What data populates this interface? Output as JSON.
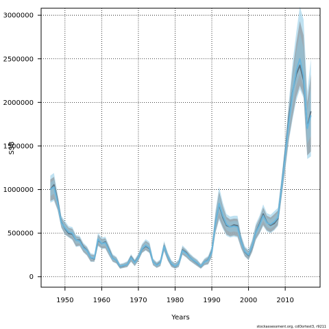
{
  "chart_data": {
    "type": "line",
    "title": "",
    "xlabel": "Years",
    "ylabel": "SSB",
    "xlim": [
      1943.5,
      2019.5
    ],
    "ylim": [
      -120000,
      3080000
    ],
    "x_ticks": [
      1950,
      1960,
      1970,
      1980,
      1990,
      2000,
      2010
    ],
    "y_ticks": [
      0,
      500000,
      1000000,
      1500000,
      2000000,
      2500000,
      3000000
    ],
    "grid": true,
    "legend": "none",
    "footnote": "stockassessment.org, cdOortest3, r9211",
    "colors": {
      "blue_line": "#6bb6dc",
      "blue_band": "#8fc6df",
      "blue_band_hi": "#a9d7ec",
      "gray_line": "#5e7585",
      "gray_band": "#8f979c"
    },
    "series": [
      {
        "x": [
          1946,
          1947,
          1948,
          1949,
          1950,
          1951,
          1952,
          1953,
          1954,
          1955,
          1956,
          1957,
          1958,
          1959,
          1960,
          1961,
          1962,
          1963,
          1964,
          1965,
          1966,
          1967,
          1968,
          1969,
          1970,
          1971,
          1972,
          1973,
          1974,
          1975,
          1976,
          1977,
          1978,
          1979,
          1980,
          1981,
          1982,
          1983,
          1984,
          1985,
          1986,
          1987,
          1988,
          1989,
          1990,
          1991,
          1992,
          1993,
          1994,
          1995,
          1996,
          1997,
          1998,
          1999,
          2000,
          2001,
          2002,
          2003,
          2004,
          2005,
          2006,
          2007,
          2008,
          2009,
          2010,
          2011,
          2012,
          2013,
          2014,
          2015,
          2016,
          2017
        ],
        "values": [
          1000000,
          1030000,
          850000,
          620000,
          560000,
          510000,
          500000,
          420000,
          410000,
          330000,
          300000,
          220000,
          210000,
          430000,
          380000,
          390000,
          300000,
          210000,
          190000,
          120000,
          130000,
          140000,
          220000,
          160000,
          220000,
          320000,
          360000,
          330000,
          170000,
          130000,
          160000,
          350000,
          230000,
          150000,
          120000,
          150000,
          300000,
          270000,
          220000,
          190000,
          160000,
          120000,
          170000,
          190000,
          280000,
          620000,
          840000,
          700000,
          600000,
          570000,
          580000,
          570000,
          400000,
          290000,
          250000,
          350000,
          510000,
          590000,
          700000,
          620000,
          600000,
          630000,
          680000,
          1020000,
          1380000,
          1780000,
          2100000,
          2360000,
          2500000,
          2300000,
          1700000,
          1850000
        ],
        "lower": [
          850000,
          870000,
          760000,
          560000,
          480000,
          450000,
          420000,
          340000,
          350000,
          280000,
          240000,
          170000,
          170000,
          350000,
          320000,
          320000,
          240000,
          170000,
          150000,
          90000,
          100000,
          110000,
          170000,
          120000,
          180000,
          270000,
          300000,
          270000,
          130000,
          100000,
          120000,
          290000,
          180000,
          110000,
          90000,
          110000,
          250000,
          220000,
          180000,
          150000,
          120000,
          90000,
          130000,
          140000,
          220000,
          500000,
          650000,
          550000,
          470000,
          450000,
          460000,
          450000,
          320000,
          230000,
          190000,
          280000,
          420000,
          490000,
          580000,
          520000,
          500000,
          530000,
          580000,
          900000,
          1220000,
          1560000,
          1800000,
          2020000,
          2150000,
          2050000,
          1350000,
          1380000
        ],
        "upper": [
          1160000,
          1190000,
          950000,
          700000,
          640000,
          580000,
          570000,
          480000,
          470000,
          390000,
          350000,
          270000,
          260000,
          500000,
          450000,
          460000,
          360000,
          260000,
          230000,
          150000,
          160000,
          180000,
          260000,
          200000,
          270000,
          380000,
          430000,
          400000,
          210000,
          170000,
          200000,
          410000,
          280000,
          190000,
          160000,
          200000,
          360000,
          320000,
          270000,
          230000,
          200000,
          150000,
          210000,
          240000,
          350000,
          760000,
          1030000,
          850000,
          720000,
          690000,
          700000,
          700000,
          480000,
          350000,
          310000,
          430000,
          610000,
          700000,
          830000,
          730000,
          710000,
          750000,
          790000,
          1150000,
          1540000,
          2020000,
          2450000,
          2800000,
          3100000,
          2950000,
          2120000,
          2500000
        ]
      }
    ]
  }
}
